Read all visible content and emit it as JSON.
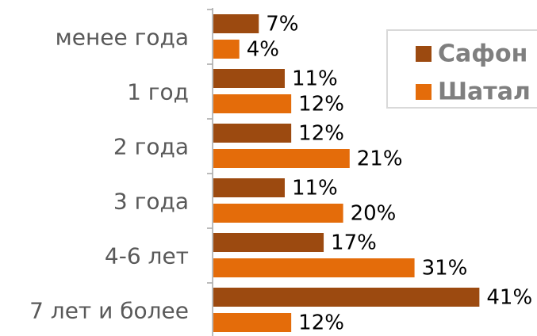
{
  "chart_data": {
    "type": "bar",
    "orientation": "horizontal",
    "categories": [
      "менее года",
      "1 год",
      "2 года",
      "3 года",
      "4-6 лет",
      "7 лет и более"
    ],
    "series": [
      {
        "name": "Сафон",
        "color": "#9c4a10",
        "values": [
          7,
          11,
          12,
          11,
          17,
          41
        ],
        "value_labels": [
          "7%",
          "11%",
          "12%",
          "11%",
          "17%",
          "41%"
        ]
      },
      {
        "name": "Шатал",
        "color": "#e46c0a",
        "values": [
          4,
          12,
          21,
          20,
          31,
          12
        ],
        "value_labels": [
          "4%",
          "12%",
          "21%",
          "20%",
          "31%",
          "12%"
        ]
      }
    ],
    "legend": "upper right"
  }
}
